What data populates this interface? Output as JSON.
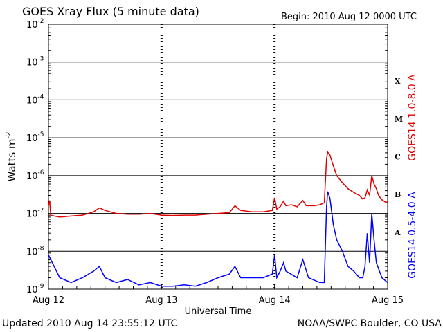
{
  "header": {
    "title": "GOES Xray Flux (5 minute data)",
    "begin": "Begin:  2010 Aug 12 0000 UTC"
  },
  "footer": {
    "updated": "Updated 2010 Aug 14 23:55:12 UTC",
    "credit": "NOAA/SWPC Boulder, CO USA"
  },
  "colors": {
    "long": "#e00000",
    "short": "#0000ff",
    "axis": "#000000"
  },
  "chart_data": {
    "type": "line",
    "xlabel": "Universal Time",
    "ylabel": "Watts m",
    "ylabel_sup": "-2",
    "y_scale": "log",
    "ylim": [
      1e-09,
      0.01
    ],
    "xlim_days": [
      0,
      3
    ],
    "x_ticks": [
      {
        "day": 0,
        "label": "Aug 12"
      },
      {
        "day": 1,
        "label": "Aug 13"
      },
      {
        "day": 2,
        "label": "Aug 14"
      },
      {
        "day": 3,
        "label": "Aug 15"
      }
    ],
    "y_ticks": [
      {
        "exp": -9,
        "label": "10",
        "sup": "-9"
      },
      {
        "exp": -8,
        "label": "10",
        "sup": "-8"
      },
      {
        "exp": -7,
        "label": "10",
        "sup": "-7"
      },
      {
        "exp": -6,
        "label": "10",
        "sup": "-6"
      },
      {
        "exp": -5,
        "label": "10",
        "sup": "-5"
      },
      {
        "exp": -4,
        "label": "10",
        "sup": "-4"
      },
      {
        "exp": -3,
        "label": "10",
        "sup": "-3"
      },
      {
        "exp": -2,
        "label": "10",
        "sup": "-2"
      }
    ],
    "flare_classes": [
      {
        "label": "A",
        "exp": -7.5
      },
      {
        "label": "B",
        "exp": -6.5
      },
      {
        "label": "C",
        "exp": -5.5
      },
      {
        "label": "M",
        "exp": -4.5
      },
      {
        "label": "X",
        "exp": -3.5
      }
    ],
    "grid": true,
    "series": [
      {
        "name": "GOES14 1.0-8.0 A",
        "color": "#e00000",
        "points": [
          [
            0,
            1.6e-07
          ],
          [
            0.01,
            2.2e-07
          ],
          [
            0.02,
            9e-08
          ],
          [
            0.05,
            8.5e-08
          ],
          [
            0.1,
            8e-08
          ],
          [
            0.2,
            8.5e-08
          ],
          [
            0.3,
            9e-08
          ],
          [
            0.4,
            1.1e-07
          ],
          [
            0.45,
            1.4e-07
          ],
          [
            0.5,
            1.2e-07
          ],
          [
            0.6,
            1e-07
          ],
          [
            0.7,
            9.5e-08
          ],
          [
            0.8,
            9.5e-08
          ],
          [
            0.9,
            1e-07
          ],
          [
            1.0,
            9e-08
          ],
          [
            1.1,
            8.8e-08
          ],
          [
            1.2,
            9e-08
          ],
          [
            1.3,
            9e-08
          ],
          [
            1.4,
            9.5e-08
          ],
          [
            1.5,
            1e-07
          ],
          [
            1.6,
            1.05e-07
          ],
          [
            1.65,
            1.6e-07
          ],
          [
            1.7,
            1.2e-07
          ],
          [
            1.8,
            1.1e-07
          ],
          [
            1.9,
            1.1e-07
          ],
          [
            1.98,
            1.2e-07
          ],
          [
            2.0,
            2.6e-07
          ],
          [
            2.02,
            1.3e-07
          ],
          [
            2.05,
            1.5e-07
          ],
          [
            2.08,
            2.1e-07
          ],
          [
            2.1,
            1.6e-07
          ],
          [
            2.15,
            1.7e-07
          ],
          [
            2.2,
            1.5e-07
          ],
          [
            2.25,
            2.2e-07
          ],
          [
            2.28,
            1.6e-07
          ],
          [
            2.35,
            1.6e-07
          ],
          [
            2.4,
            1.7e-07
          ],
          [
            2.44,
            1.9e-07
          ],
          [
            2.46,
            2.8e-06
          ],
          [
            2.47,
            4.2e-06
          ],
          [
            2.49,
            3.5e-06
          ],
          [
            2.52,
            1.8e-06
          ],
          [
            2.55,
            1e-06
          ],
          [
            2.6,
            6.5e-07
          ],
          [
            2.65,
            4.5e-07
          ],
          [
            2.7,
            3.6e-07
          ],
          [
            2.75,
            3e-07
          ],
          [
            2.78,
            2.4e-07
          ],
          [
            2.8,
            2.6e-07
          ],
          [
            2.82,
            4.2e-07
          ],
          [
            2.84,
            3e-07
          ],
          [
            2.86,
            1e-06
          ],
          [
            2.88,
            6e-07
          ],
          [
            2.9,
            4.5e-07
          ],
          [
            2.92,
            3e-07
          ],
          [
            2.95,
            2.3e-07
          ],
          [
            2.98,
            2e-07
          ],
          [
            3.0,
            2e-07
          ]
        ]
      },
      {
        "name": "GOES14 0.5-4.0 A",
        "color": "#0000ff",
        "points": [
          [
            0,
            8e-09
          ],
          [
            0.1,
            2e-09
          ],
          [
            0.2,
            1.5e-09
          ],
          [
            0.3,
            2e-09
          ],
          [
            0.4,
            3e-09
          ],
          [
            0.45,
            4e-09
          ],
          [
            0.5,
            2e-09
          ],
          [
            0.6,
            1.5e-09
          ],
          [
            0.7,
            1.8e-09
          ],
          [
            0.8,
            1.3e-09
          ],
          [
            0.9,
            1.5e-09
          ],
          [
            1.0,
            1.2e-09
          ],
          [
            1.1,
            1.2e-09
          ],
          [
            1.2,
            1.3e-09
          ],
          [
            1.3,
            1.2e-09
          ],
          [
            1.4,
            1.5e-09
          ],
          [
            1.5,
            2e-09
          ],
          [
            1.6,
            2.5e-09
          ],
          [
            1.65,
            4e-09
          ],
          [
            1.7,
            2e-09
          ],
          [
            1.8,
            2e-09
          ],
          [
            1.9,
            2e-09
          ],
          [
            1.98,
            2.5e-09
          ],
          [
            2.0,
            8e-09
          ],
          [
            2.02,
            2e-09
          ],
          [
            2.05,
            3e-09
          ],
          [
            2.08,
            5e-09
          ],
          [
            2.1,
            3e-09
          ],
          [
            2.2,
            2e-09
          ],
          [
            2.25,
            6e-09
          ],
          [
            2.3,
            2e-09
          ],
          [
            2.4,
            1.5e-09
          ],
          [
            2.44,
            1.5e-09
          ],
          [
            2.46,
            1.5e-07
          ],
          [
            2.47,
            3.8e-07
          ],
          [
            2.49,
            2.5e-07
          ],
          [
            2.52,
            5e-08
          ],
          [
            2.55,
            2e-08
          ],
          [
            2.6,
            1e-08
          ],
          [
            2.65,
            4e-09
          ],
          [
            2.7,
            3e-09
          ],
          [
            2.75,
            2e-09
          ],
          [
            2.78,
            2e-09
          ],
          [
            2.8,
            4e-09
          ],
          [
            2.82,
            3e-08
          ],
          [
            2.84,
            5e-09
          ],
          [
            2.86,
            1e-07
          ],
          [
            2.88,
            2e-08
          ],
          [
            2.9,
            5e-09
          ],
          [
            2.95,
            2e-09
          ],
          [
            3.0,
            1.5e-09
          ]
        ]
      }
    ]
  }
}
